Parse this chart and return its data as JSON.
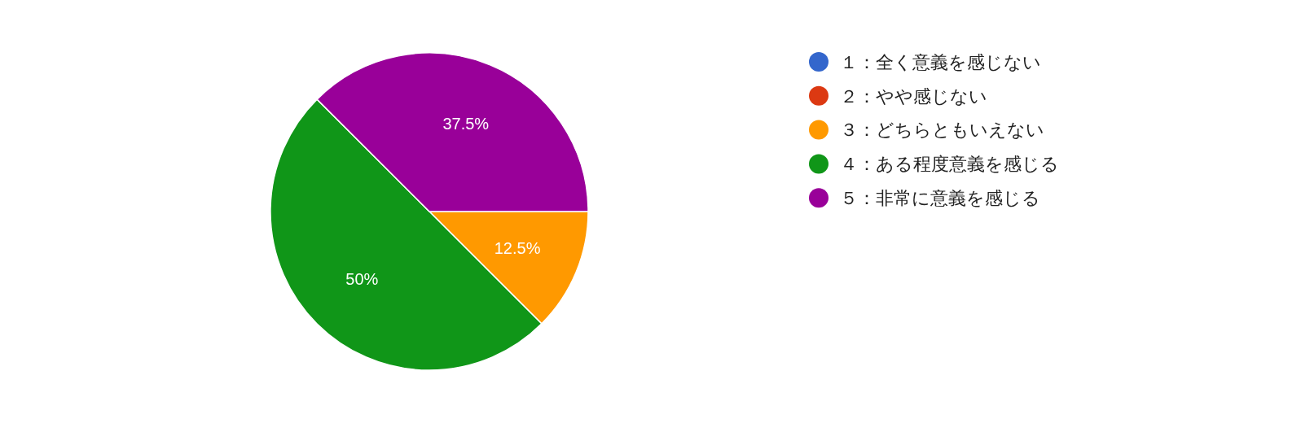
{
  "chart_data": {
    "type": "pie",
    "categories": [
      "１：全く意義を感じない",
      "２：やや感じない",
      "３：どちらともいえない",
      "４：ある程度意義を感じる",
      "５：非常に意義を感じる"
    ],
    "values": [
      0,
      0,
      12.5,
      50,
      37.5
    ],
    "colors": [
      "#3366cc",
      "#dc3912",
      "#ff9900",
      "#109618",
      "#990099"
    ],
    "value_labels": [
      null,
      null,
      "12.5%",
      "50%",
      "37.5%"
    ],
    "legend": "right"
  }
}
